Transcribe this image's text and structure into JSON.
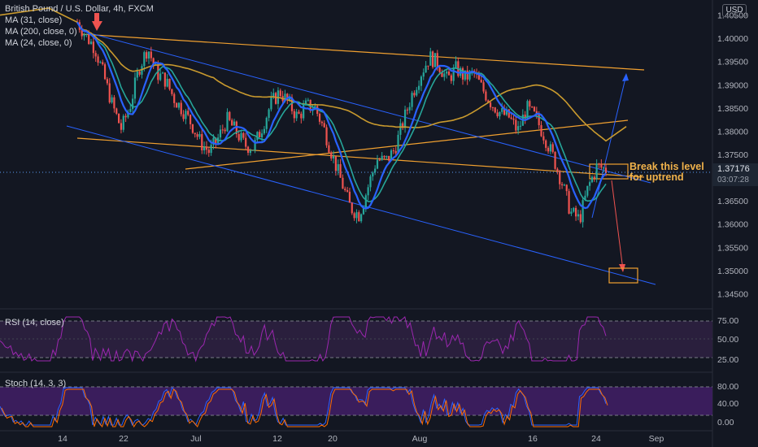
{
  "header": {
    "symbol_line": "British Pound / U.S. Dollar, 4h, FXCM",
    "indicators": [
      "MA (31, close)",
      "MA (200, close, 0)",
      "MA (24, close, 0)"
    ],
    "currency_badge": "USD"
  },
  "price_box": {
    "price": "1.37176",
    "countdown": "03:07:28"
  },
  "annotation": {
    "line1": "Break this level",
    "line2": "for uptrend"
  },
  "rsi": {
    "label": "RSI (14, close)",
    "ticks": [
      "75.00",
      "50.00",
      "25.00"
    ]
  },
  "stoch": {
    "label": "Stoch (14, 3, 3)",
    "ticks": [
      "80.00",
      "40.00",
      "0.00"
    ]
  },
  "colors": {
    "background": "#131722",
    "ma31": "#2962ff",
    "ma200": "#c99a2e",
    "ma24": "#26a69a",
    "up": "#26a69a",
    "down": "#ef5350",
    "trendline": "#f0a030",
    "channel": "#2962ff",
    "rsi_line": "#9c27b0",
    "stoch_fill": "#4a1f6b",
    "stoch_k": "#2962ff",
    "stoch_d": "#ff6d00"
  },
  "chart_data": {
    "type": "candlestick",
    "price_axis": {
      "ticks": [
        "1.40500",
        "1.40000",
        "1.39500",
        "1.39000",
        "1.38500",
        "1.38000",
        "1.37500",
        "1.37000",
        "1.36500",
        "1.36000",
        "1.35500",
        "1.35000",
        "1.34500"
      ],
      "range": [
        1.3435,
        1.4065
      ]
    },
    "time_axis": {
      "labels": [
        "14",
        "22",
        "Jul",
        "12",
        "20",
        "Aug",
        "16",
        "24",
        "Sep"
      ]
    },
    "close_path": [
      1.4035,
      1.4005,
      1.398,
      1.392,
      1.3855,
      1.3805,
      1.3855,
      1.3935,
      1.398,
      1.3925,
      1.391,
      1.387,
      1.3845,
      1.3815,
      1.3775,
      1.3755,
      1.3785,
      1.3825,
      1.38,
      1.377,
      1.3765,
      1.381,
      1.386,
      1.3885,
      1.386,
      1.383,
      1.3855,
      1.385,
      1.3805,
      1.3745,
      1.369,
      1.3635,
      1.362,
      1.368,
      1.374,
      1.3735,
      1.376,
      1.382,
      1.388,
      1.3925,
      1.396,
      1.3945,
      1.391,
      1.3935,
      1.3915,
      1.3925,
      1.389,
      1.386,
      1.384,
      1.383,
      1.38,
      1.385,
      1.383,
      1.379,
      1.3745,
      1.369,
      1.3625,
      1.361,
      1.368,
      1.3725,
      1.3717
    ]
  }
}
